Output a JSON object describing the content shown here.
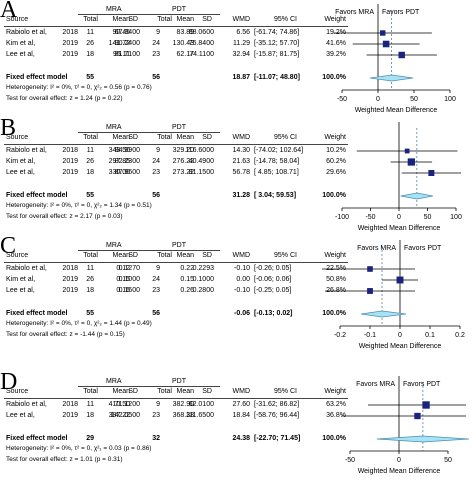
{
  "table_headers": {
    "source": "Source",
    "total": "Total",
    "mean": "Mean",
    "sd": "SD",
    "wmd": "WMD",
    "ci": "95% CI",
    "weight": "Weight"
  },
  "axis_title": "Weighted Mean Difference",
  "fixed_label": "Fixed effect model",
  "colors": {
    "square": "#1a237e",
    "diamond_fill": "#a7e3f3",
    "diamond_stroke": "#4a8fb2",
    "dashed": "#5b7fa6",
    "axis": "#000000"
  },
  "panels": [
    {
      "label": "A",
      "mra": "MRA",
      "pdt": "PDT",
      "favors_left": "Favors MRA",
      "favors_right": "Favors PDT",
      "rows": [
        {
          "source": "Rabiolo et al,",
          "year": "2018",
          "t1": "11",
          "m1": "90.45",
          "s1": "67.9400",
          "t2": "9",
          "m2": "83.89",
          "s2": "88.0600",
          "wmd": "6.56",
          "ci": "[-61.74; 74.86]",
          "weight": "19.2%"
        },
        {
          "source": "Kim et al,",
          "year": "2019",
          "t1": "26",
          "m1": "141.72",
          "s1": "90.2400",
          "t2": "24",
          "m2": "130.43",
          "s2": "75.8400",
          "wmd": "11.29",
          "ci": "[-35.12; 57.70]",
          "weight": "41.6%"
        },
        {
          "source": "Lee et al,",
          "year": "2019",
          "t1": "18",
          "m1": "95.11",
          "s1": "81.7100",
          "t2": "23",
          "m2": "62.17",
          "s2": "74.1100",
          "wmd": "32.94",
          "ci": "[-15.87; 81.75]",
          "weight": "39.2%"
        }
      ],
      "fixed": {
        "t1": "55",
        "t2": "56",
        "wmd": "18.87",
        "ci": "[-11.07; 48.80]",
        "weight": "100.0%"
      },
      "heterogeneity": "Heterogeneity: I² = 0%, τ² = 0, χ²₂ = 0.56 (p = 0.76)",
      "test": "Test for overall effect: z = 1.24 (p = 0.22)",
      "ticks": [
        "-50",
        "0",
        "50",
        "100"
      ]
    },
    {
      "label": "B",
      "mra": "MRA",
      "pdt": "PDT",
      "favors_left": "",
      "favors_right": "",
      "rows": [
        {
          "source": "Rabiolo et al,",
          "year": "2018",
          "t1": "11",
          "m1": "343.50",
          "s1": "84.9900",
          "t2": "9",
          "m2": "329.20",
          "s2": "116.6000",
          "wmd": "14.30",
          "ci": "[-74.02; 102.64]",
          "weight": "10.2%"
        },
        {
          "source": "Kim et al,",
          "year": "2019",
          "t1": "26",
          "m1": "297.85",
          "s1": "82.2300",
          "t2": "24",
          "m2": "276.22",
          "s2": "40.4900",
          "wmd": "21.63",
          "ci": "[-14.78; 58.04]",
          "weight": "60.2%"
        },
        {
          "source": "Lee et al,",
          "year": "2019",
          "t1": "18",
          "m1": "330.00",
          "s1": "87.9600",
          "t2": "23",
          "m2": "273.22",
          "s2": "81.1500",
          "wmd": "56.78",
          "ci": "[ 4.85; 108.71]",
          "weight": "29.6%"
        }
      ],
      "fixed": {
        "t1": "55",
        "t2": "56",
        "wmd": "31.28",
        "ci": "[ 3.04; 59.53]",
        "weight": "100.0%"
      },
      "heterogeneity": "Heterogeneity: I² = 0%, τ² = 0, χ²₂ = 1.34 (p = 0.51)",
      "test": "Test for overall effect: z = 2.17 (p = 0.03)",
      "ticks": [
        "-100",
        "-50",
        "0",
        "50",
        "100"
      ]
    },
    {
      "label": "C",
      "mra": "MRA",
      "pdt": "PDT",
      "favors_left": "Favors MRA",
      "favors_right": "Favors PDT",
      "rows": [
        {
          "source": "Rabiolo et al,",
          "year": "2018",
          "t1": "11",
          "m1": "0.12",
          "s1": "0.1270",
          "t2": "9",
          "m2": "0.22",
          "s2": "0.2293",
          "wmd": "-0.10",
          "ci": "[-0.26; 0.05]",
          "weight": "22.5%"
        },
        {
          "source": "Kim et al,",
          "year": "2019",
          "t1": "26",
          "m1": "0.15",
          "s1": "0.1000",
          "t2": "24",
          "m2": "0.15",
          "s2": "0.1000",
          "wmd": "0.00",
          "ci": "[-0.06; 0.06]",
          "weight": "50.8%"
        },
        {
          "source": "Lee et al,",
          "year": "2019",
          "t1": "18",
          "m1": "0.16",
          "s1": "0.1600",
          "t2": "23",
          "m2": "0.26",
          "s2": "0.2800",
          "wmd": "-0.10",
          "ci": "[-0.25; 0.05]",
          "weight": "26.8%"
        }
      ],
      "fixed": {
        "t1": "55",
        "t2": "56",
        "wmd": "-0.06",
        "ci": "[-0.13; 0.02]",
        "weight": "100.0%"
      },
      "heterogeneity": "Heterogeneity: I² = 0%, τ² = 0, χ²₂ = 1.44 (p = 0.49)",
      "test": "Test for overall effect: z = -1.44 (p = 0.15)",
      "ticks": [
        "-0.2",
        "-0.1",
        "0",
        "0.1",
        "0.2"
      ]
    },
    {
      "label": "D",
      "mra": "MRA",
      "pdt": "PDT",
      "favors_left": "Favors MRA",
      "favors_right": "Favors PDT",
      "rows": [
        {
          "source": "Rabiolo et al,",
          "year": "2018",
          "t1": "11",
          "m1": "410.50",
          "s1": "71.1200",
          "t2": "9",
          "m2": "382.90",
          "s2": "62.0100",
          "wmd": "27.60",
          "ci": "[-31.62; 86.82]",
          "weight": "63.2%"
        },
        {
          "source": "Lee et al,",
          "year": "2019",
          "t1": "18",
          "m1": "387.22",
          "s1": "142.0500",
          "t2": "23",
          "m2": "368.38",
          "s2": "111.6500",
          "wmd": "18.84",
          "ci": "[-58.76; 96.44]",
          "weight": "36.8%"
        }
      ],
      "fixed": {
        "t1": "29",
        "t2": "32",
        "wmd": "24.38",
        "ci": "[-22.70; 71.45]",
        "weight": "100.0%"
      },
      "heterogeneity": "Heterogeneity: I² = 0%, τ² = 0, χ²₁ = 0.03 (p = 0.86)",
      "test": "Test for overall effect: z = 1.01 (p = 0.31)",
      "ticks": [
        "-50",
        "0",
        "50"
      ]
    }
  ],
  "chart_data": [
    {
      "type": "forest",
      "panel": "A",
      "xlabel": "Weighted Mean Difference",
      "xlim": [
        -50,
        100
      ],
      "studies": [
        {
          "name": "Rabiolo et al, 2018",
          "est": 6.56,
          "lo": -61.74,
          "hi": 74.86,
          "weight": 19.2
        },
        {
          "name": "Kim et al, 2019",
          "est": 11.29,
          "lo": -35.12,
          "hi": 57.7,
          "weight": 41.6
        },
        {
          "name": "Lee et al, 2019",
          "est": 32.94,
          "lo": -15.87,
          "hi": 81.75,
          "weight": 39.2
        }
      ],
      "pooled": {
        "est": 18.87,
        "lo": -11.07,
        "hi": 48.8
      }
    },
    {
      "type": "forest",
      "panel": "B",
      "xlabel": "Weighted Mean Difference",
      "xlim": [
        -100,
        100
      ],
      "studies": [
        {
          "name": "Rabiolo et al, 2018",
          "est": 14.3,
          "lo": -74.02,
          "hi": 102.64,
          "weight": 10.2
        },
        {
          "name": "Kim et al, 2019",
          "est": 21.63,
          "lo": -14.78,
          "hi": 58.04,
          "weight": 60.2
        },
        {
          "name": "Lee et al, 2019",
          "est": 56.78,
          "lo": 4.85,
          "hi": 108.71,
          "weight": 29.6
        }
      ],
      "pooled": {
        "est": 31.28,
        "lo": 3.04,
        "hi": 59.53
      }
    },
    {
      "type": "forest",
      "panel": "C",
      "xlabel": "Weighted Mean Difference",
      "xlim": [
        -0.2,
        0.2
      ],
      "studies": [
        {
          "name": "Rabiolo et al, 2018",
          "est": -0.1,
          "lo": -0.26,
          "hi": 0.05,
          "weight": 22.5
        },
        {
          "name": "Kim et al, 2019",
          "est": 0.0,
          "lo": -0.06,
          "hi": 0.06,
          "weight": 50.8
        },
        {
          "name": "Lee et al, 2019",
          "est": -0.1,
          "lo": -0.25,
          "hi": 0.05,
          "weight": 26.8
        }
      ],
      "pooled": {
        "est": -0.06,
        "lo": -0.13,
        "hi": 0.02
      }
    },
    {
      "type": "forest",
      "panel": "D",
      "xlabel": "Weighted Mean Difference",
      "xlim": [
        -50,
        50
      ],
      "studies": [
        {
          "name": "Rabiolo et al, 2018",
          "est": 27.6,
          "lo": -31.62,
          "hi": 86.82,
          "weight": 63.2
        },
        {
          "name": "Lee et al, 2019",
          "est": 18.84,
          "lo": -58.76,
          "hi": 96.44,
          "weight": 36.8
        }
      ],
      "pooled": {
        "est": 24.38,
        "lo": -22.7,
        "hi": 71.45
      }
    }
  ]
}
